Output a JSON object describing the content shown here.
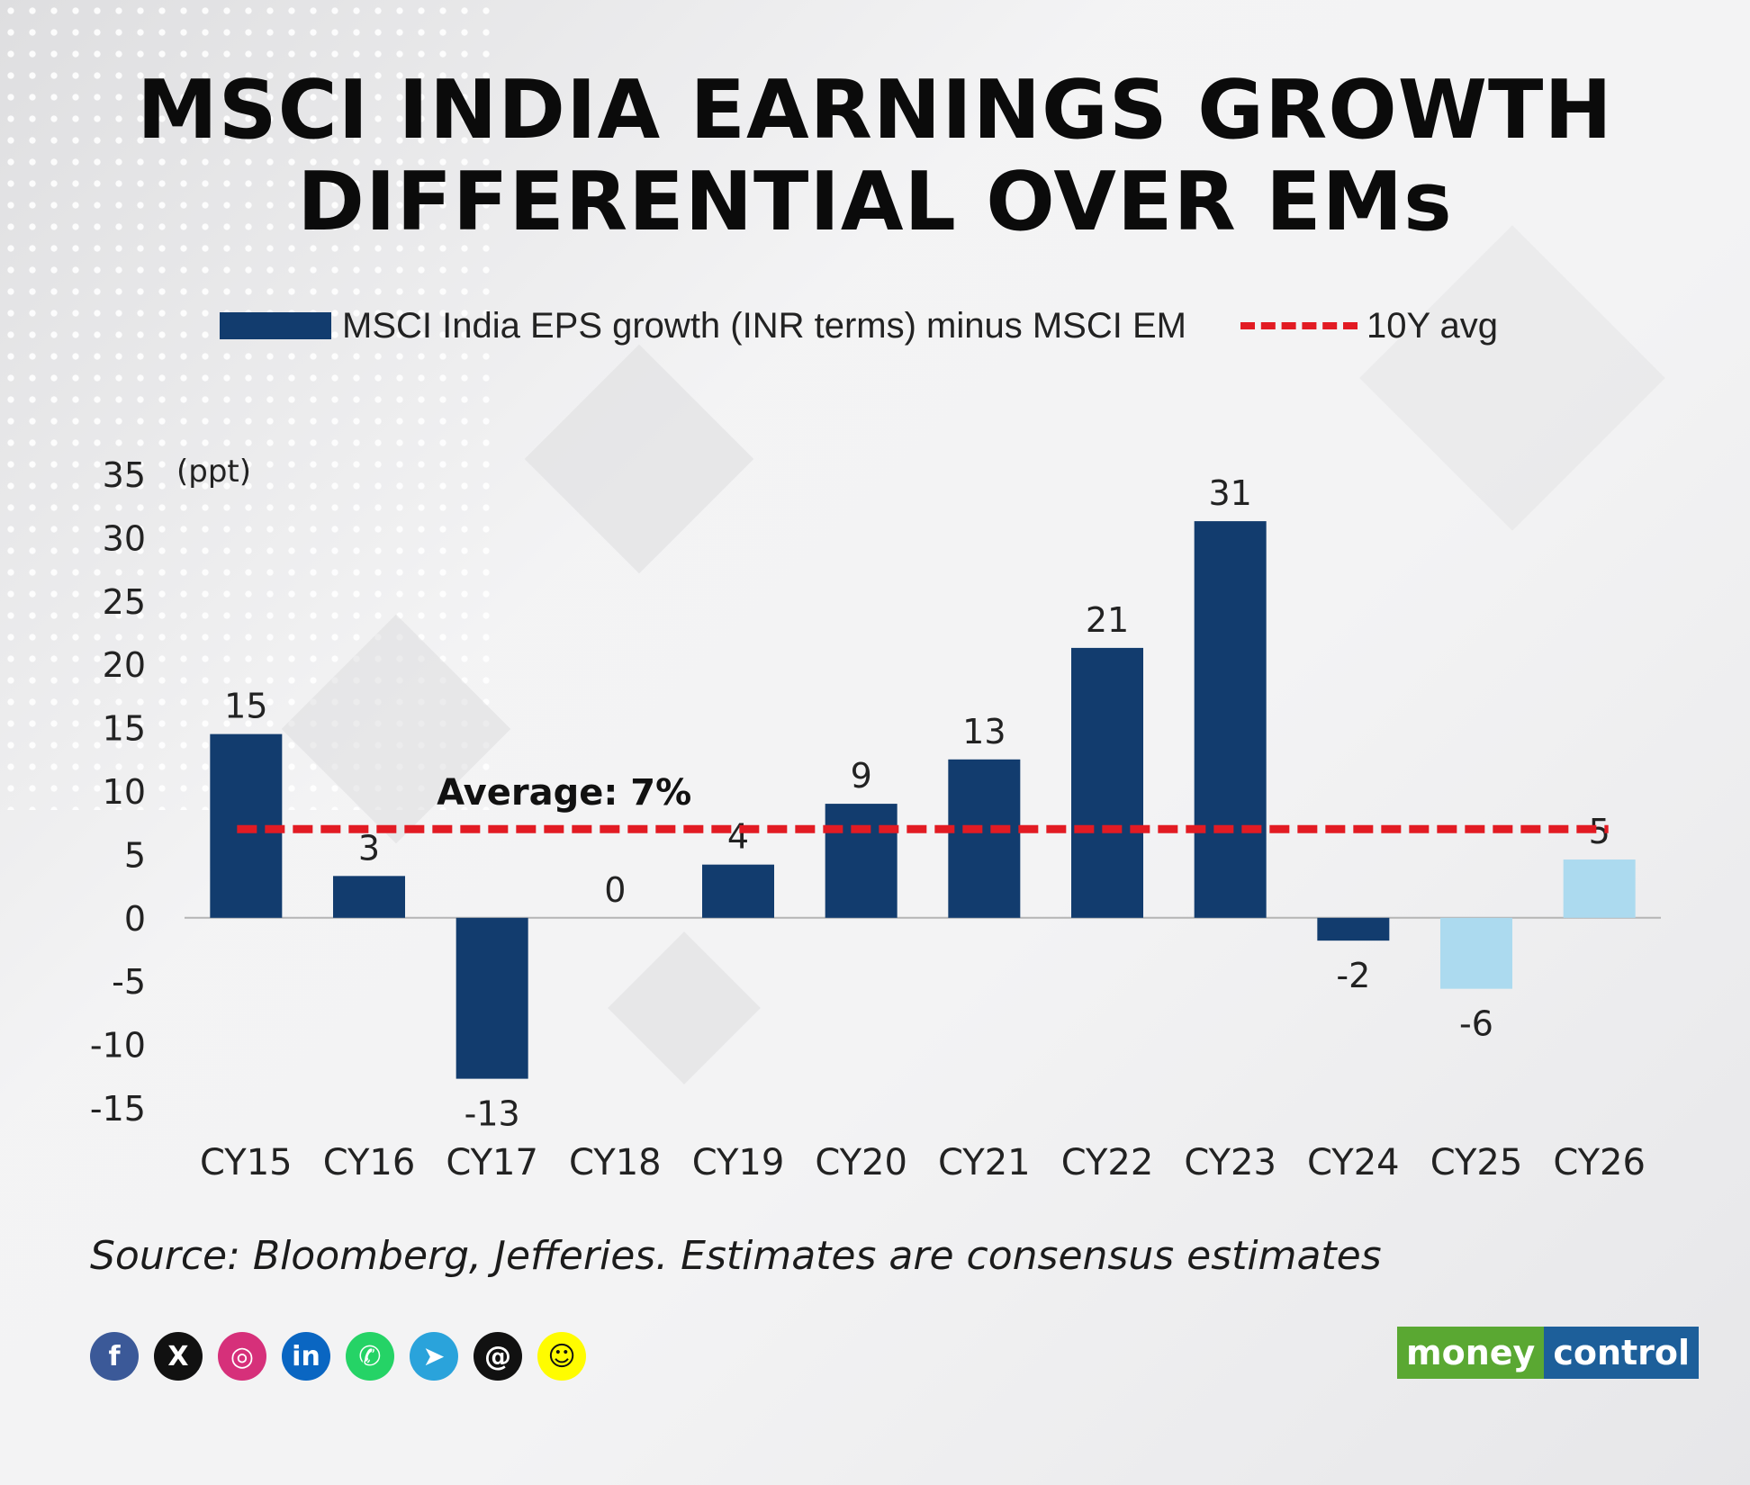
{
  "title": {
    "line1": "MSCI INDIA EARNINGS GROWTH",
    "line2": "DIFFERENTIAL OVER EMs"
  },
  "legend": {
    "bar_label": "MSCI India EPS growth (INR terms) minus MSCI EM",
    "avg_label": "10Y avg"
  },
  "chart_data": {
    "type": "bar",
    "title": "MSCI INDIA EARNINGS GROWTH DIFFERENTIAL OVER EMs",
    "ylabel": "(ppt)",
    "xlabel": "",
    "ylim": [
      -15,
      35
    ],
    "yticks": [
      35,
      30,
      25,
      20,
      15,
      10,
      5,
      0,
      -5,
      -10,
      -15
    ],
    "categories": [
      "CY15",
      "CY16",
      "CY17",
      "CY18",
      "CY19",
      "CY20",
      "CY21",
      "CY22",
      "CY23",
      "CY24",
      "CY25",
      "CY26"
    ],
    "values": [
      14.5,
      3.3,
      -12.7,
      0,
      4.2,
      9,
      12.5,
      21.3,
      31.3,
      -1.8,
      -5.6,
      4.6
    ],
    "data_labels": [
      "15",
      "3",
      "-13",
      "0",
      "4",
      "9",
      "13",
      "21",
      "31",
      "-2",
      "-6",
      "5"
    ],
    "estimate": [
      false,
      false,
      false,
      false,
      false,
      false,
      false,
      false,
      false,
      false,
      true,
      true
    ],
    "average": 7,
    "average_label": "Average: 7%",
    "colors": {
      "actual": "#123c6e",
      "estimate": "#acdaef",
      "average_line": "#e21b23"
    }
  },
  "source": "Source: Bloomberg, Jefferies. Estimates are consensus estimates",
  "socials": [
    {
      "name": "facebook-icon",
      "glyph": "f",
      "color": "#3b5998"
    },
    {
      "name": "x-icon",
      "glyph": "X",
      "color": "#111111"
    },
    {
      "name": "instagram-icon",
      "glyph": "◎",
      "color": "#d6307a"
    },
    {
      "name": "linkedin-icon",
      "glyph": "in",
      "color": "#0a66c2"
    },
    {
      "name": "whatsapp-icon",
      "glyph": "✆",
      "color": "#25d366"
    },
    {
      "name": "telegram-icon",
      "glyph": "➤",
      "color": "#2aa3db"
    },
    {
      "name": "threads-icon",
      "glyph": "@",
      "color": "#111111"
    },
    {
      "name": "snapchat-icon",
      "glyph": "☺",
      "color": "#fffc00"
    }
  ],
  "brand": {
    "part1": "money",
    "part2": "control"
  }
}
